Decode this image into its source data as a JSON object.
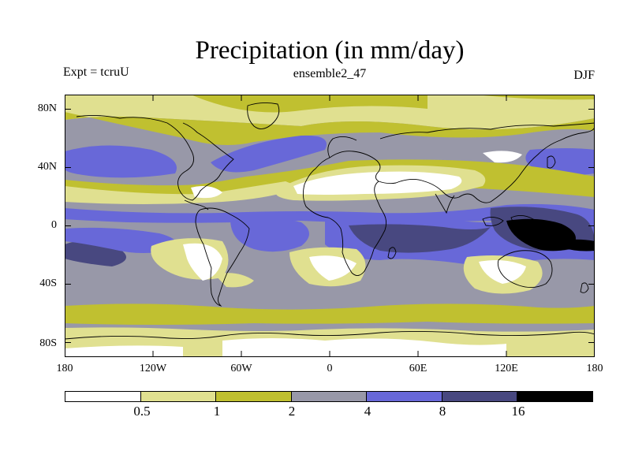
{
  "title": "Precipitation (in mm/day)",
  "expt_label": "Expt = tcruU",
  "ensemble_label": "ensemble2_47",
  "season_label": "DJF",
  "lat_ticks": [
    "80N",
    "40N",
    "0",
    "40S",
    "80S"
  ],
  "lon_ticks": [
    "180",
    "120W",
    "60W",
    "0",
    "60E",
    "120E",
    "180"
  ],
  "colorbar": {
    "levels": [
      "0.5",
      "1",
      "2",
      "4",
      "8",
      "16"
    ],
    "colors": [
      "#ffffff",
      "#e0e090",
      "#c0c030",
      "#9898a8",
      "#6868d8",
      "#484880",
      "#000000"
    ]
  }
}
